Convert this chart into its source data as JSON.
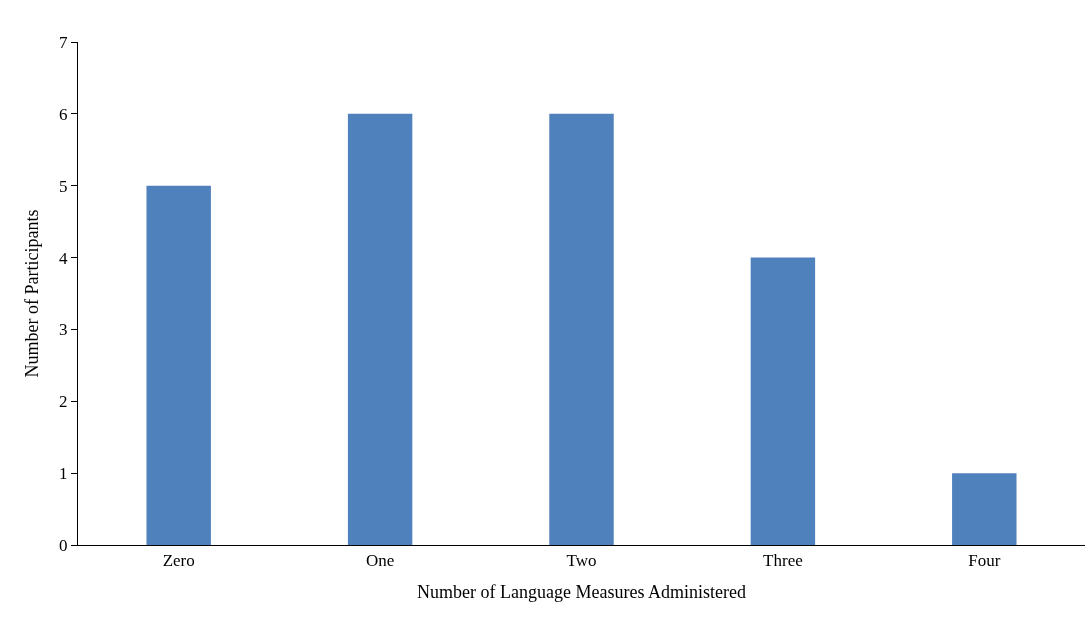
{
  "chart_data": {
    "type": "bar",
    "xlabel": "Number of Language Measures Administered",
    "ylabel": "Number of Participants",
    "categories": [
      "Zero",
      "One",
      "Two",
      "Three",
      "Four"
    ],
    "values": [
      5,
      6,
      6,
      4,
      1
    ],
    "color": "#4f81bd",
    "ylim": [
      0,
      7
    ],
    "yticks": [
      0,
      1,
      2,
      3,
      4,
      5,
      6,
      7
    ]
  }
}
